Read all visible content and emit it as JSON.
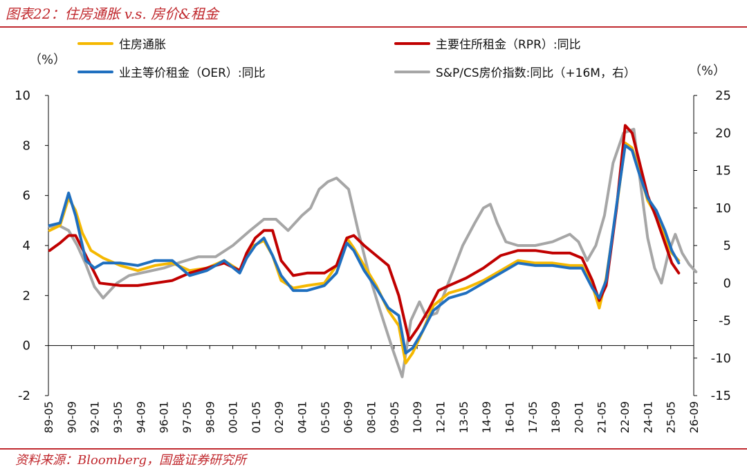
{
  "title": "图表22：住房通胀 v.s. 房价&租金",
  "source": "资料来源：Bloomberg，国盛证券研究所",
  "colors": {
    "accent": "#c0282d",
    "housing": "#f5b800",
    "rpr": "#c00000",
    "oer": "#1f6fbf",
    "cs": "#a6a6a6"
  },
  "chart_data": {
    "type": "line",
    "title": "图表22：住房通胀 v.s. 房价&租金",
    "left_axis": {
      "unit": "（%）",
      "ylim": [
        -2,
        10
      ],
      "ticks": [
        "10",
        "8",
        "6",
        "4",
        "2",
        "0",
        "-2"
      ]
    },
    "right_axis": {
      "unit": "（%）",
      "ylim": [
        -15,
        25
      ],
      "ticks": [
        "25",
        "20",
        "15",
        "10",
        "5",
        "0",
        "-5",
        "-10",
        "-15"
      ]
    },
    "x_range": [
      "1989-05",
      "2026-09"
    ],
    "x_ticks": [
      "89-05",
      "90-09",
      "92-01",
      "93-05",
      "94-09",
      "96-01",
      "97-05",
      "98-09",
      "00-01",
      "01-05",
      "02-09",
      "04-01",
      "05-05",
      "06-09",
      "08-01",
      "09-05",
      "10-09",
      "12-01",
      "13-05",
      "14-09",
      "16-01",
      "17-05",
      "18-09",
      "20-01",
      "21-05",
      "22-09",
      "24-01",
      "25-05",
      "26-09"
    ],
    "legend_placement": "top",
    "series": [
      {
        "key": "housing",
        "name": "住房通胀",
        "axis": "left",
        "x": [
          1989.4,
          1990.0,
          1990.5,
          1990.9,
          1991.3,
          1991.8,
          1992.5,
          1993.5,
          1994.5,
          1995.5,
          1996.5,
          1997.5,
          1998.5,
          1999.5,
          2000.4,
          2000.8,
          2001.2,
          2001.8,
          2002.3,
          2002.8,
          2003.5,
          2004.3,
          2005.3,
          2006.0,
          2006.6,
          2007.0,
          2007.6,
          2008.3,
          2009.0,
          2009.6,
          2010.0,
          2010.4,
          2011.0,
          2011.6,
          2012.5,
          2013.5,
          2014.5,
          2015.5,
          2016.5,
          2017.5,
          2018.5,
          2019.5,
          2020.2,
          2020.8,
          2021.2,
          2021.6,
          2022.2,
          2022.7,
          2023.1,
          2023.5,
          2024.0,
          2024.5,
          2025.0,
          2025.4,
          2025.8
        ],
        "y": [
          4.6,
          4.8,
          5.9,
          5.4,
          4.5,
          3.8,
          3.5,
          3.2,
          3.0,
          3.2,
          3.3,
          3.0,
          3.1,
          3.4,
          3.0,
          3.6,
          4.0,
          4.2,
          3.6,
          2.6,
          2.3,
          2.4,
          2.5,
          3.2,
          4.3,
          3.9,
          3.2,
          2.4,
          1.4,
          0.8,
          -0.7,
          -0.3,
          0.6,
          1.6,
          2.1,
          2.3,
          2.6,
          3.0,
          3.4,
          3.3,
          3.3,
          3.2,
          3.2,
          2.4,
          1.5,
          2.7,
          5.5,
          8.1,
          7.9,
          7.0,
          5.8,
          5.2,
          4.3,
          3.7,
          3.4
        ]
      },
      {
        "key": "rpr",
        "name": "主要住所租金（RPR）:同比",
        "axis": "left",
        "x": [
          1989.4,
          1990.0,
          1990.5,
          1990.9,
          1991.5,
          1992.3,
          1993.5,
          1994.5,
          1995.5,
          1996.5,
          1997.5,
          1998.5,
          1999.5,
          2000.4,
          2000.8,
          2001.3,
          2001.8,
          2002.3,
          2002.8,
          2003.5,
          2004.3,
          2005.3,
          2006.0,
          2006.6,
          2007.0,
          2007.6,
          2008.3,
          2009.0,
          2009.6,
          2010.2,
          2010.7,
          2011.3,
          2011.9,
          2012.5,
          2013.5,
          2014.5,
          2015.5,
          2016.5,
          2017.5,
          2018.5,
          2019.5,
          2020.2,
          2020.8,
          2021.2,
          2021.6,
          2022.2,
          2022.7,
          2023.1,
          2023.5,
          2024.0,
          2024.5,
          2025.0,
          2025.4,
          2025.8
        ],
        "y": [
          3.8,
          4.1,
          4.4,
          4.4,
          3.6,
          2.5,
          2.4,
          2.4,
          2.5,
          2.6,
          2.9,
          3.1,
          3.3,
          3.0,
          3.7,
          4.3,
          4.6,
          4.6,
          3.4,
          2.8,
          2.9,
          2.9,
          3.2,
          4.3,
          4.4,
          4.0,
          3.6,
          3.2,
          2.0,
          0.2,
          0.7,
          1.4,
          2.2,
          2.4,
          2.7,
          3.1,
          3.6,
          3.8,
          3.8,
          3.7,
          3.7,
          3.5,
          2.6,
          1.8,
          2.4,
          5.5,
          8.8,
          8.5,
          7.4,
          6.0,
          5.1,
          4.1,
          3.3,
          2.9
        ]
      },
      {
        "key": "oer",
        "name": "业主等价租金（OER）:同比",
        "axis": "left",
        "x": [
          1989.4,
          1990.0,
          1990.5,
          1990.9,
          1991.5,
          1992.0,
          1992.5,
          1993.5,
          1994.5,
          1995.5,
          1996.5,
          1997.5,
          1998.5,
          1999.5,
          2000.4,
          2000.8,
          2001.3,
          2001.8,
          2002.3,
          2002.8,
          2003.5,
          2004.3,
          2005.3,
          2006.0,
          2006.6,
          2007.0,
          2007.6,
          2008.3,
          2009.0,
          2009.6,
          2010.0,
          2010.4,
          2011.0,
          2011.6,
          2012.5,
          2013.5,
          2014.5,
          2015.5,
          2016.5,
          2017.5,
          2018.5,
          2019.5,
          2020.2,
          2020.8,
          2021.2,
          2021.6,
          2022.2,
          2022.7,
          2023.1,
          2023.5,
          2024.0,
          2024.5,
          2025.0,
          2025.4,
          2025.8
        ],
        "y": [
          4.8,
          4.9,
          6.1,
          5.2,
          3.4,
          3.1,
          3.3,
          3.3,
          3.2,
          3.4,
          3.4,
          2.8,
          3.0,
          3.4,
          2.9,
          3.5,
          4.0,
          4.3,
          3.6,
          2.8,
          2.2,
          2.2,
          2.4,
          2.9,
          4.1,
          3.8,
          3.0,
          2.3,
          1.5,
          1.2,
          -0.3,
          -0.1,
          0.6,
          1.4,
          1.9,
          2.1,
          2.5,
          2.9,
          3.3,
          3.2,
          3.2,
          3.1,
          3.1,
          2.3,
          1.9,
          2.6,
          5.6,
          8.0,
          7.8,
          6.9,
          5.9,
          5.4,
          4.6,
          3.8,
          3.3
        ]
      },
      {
        "key": "cs",
        "name": "S&P/CS房价指数:同比（+16M，右）",
        "axis": "right",
        "x": [
          1989.4,
          1990.0,
          1990.5,
          1991.0,
          1991.5,
          1992.0,
          1992.5,
          1993.3,
          1994.0,
          1995.0,
          1996.0,
          1997.0,
          1998.0,
          1999.0,
          2000.0,
          2001.0,
          2001.8,
          2002.5,
          2003.2,
          2004.0,
          2004.5,
          2005.0,
          2005.5,
          2006.0,
          2006.7,
          2007.3,
          2007.9,
          2008.5,
          2009.2,
          2009.8,
          2010.3,
          2010.8,
          2011.2,
          2011.8,
          2012.3,
          2012.8,
          2013.3,
          2014.0,
          2014.5,
          2014.9,
          2015.3,
          2015.8,
          2016.5,
          2017.5,
          2018.5,
          2019.5,
          2020.0,
          2020.5,
          2021.0,
          2021.5,
          2022.0,
          2022.6,
          2023.2,
          2023.6,
          2024.0,
          2024.4,
          2024.8,
          2025.2,
          2025.6,
          2026.0,
          2026.4,
          2026.8
        ],
        "y": [
          7.5,
          7.6,
          7.0,
          5.0,
          2.5,
          -0.5,
          -2.0,
          0.0,
          1.0,
          1.5,
          2.0,
          2.8,
          3.5,
          3.5,
          5.0,
          7.0,
          8.5,
          8.5,
          7.0,
          9.0,
          10.0,
          12.5,
          13.5,
          14.0,
          12.5,
          6.5,
          1.0,
          -3.5,
          -8.5,
          -12.5,
          -5.0,
          -2.5,
          -4.5,
          -4.0,
          -1.0,
          2.0,
          5.0,
          8.0,
          10.0,
          10.5,
          8.0,
          5.5,
          5.0,
          5.0,
          5.5,
          6.5,
          5.5,
          3.0,
          5.0,
          9.0,
          16.0,
          20.0,
          20.5,
          13.0,
          6.0,
          2.0,
          0.0,
          4.0,
          6.5,
          4.0,
          2.5,
          1.5
        ]
      }
    ]
  }
}
